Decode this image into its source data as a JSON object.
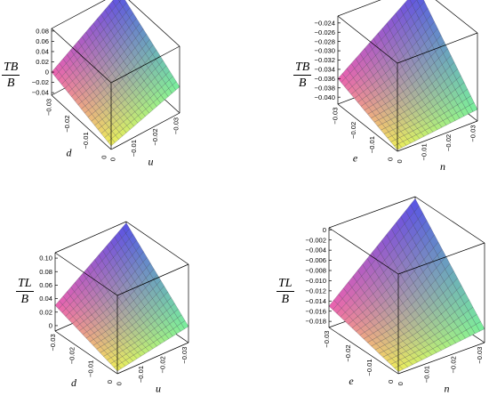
{
  "chart_data": [
    {
      "type": "surface3d",
      "zlabel": {
        "numerator": "TB",
        "denominator": "B"
      },
      "xlabel": "d",
      "ylabel": "u",
      "x_ticks": [
        "−0.03",
        "−0.02",
        "−0.01",
        "0"
      ],
      "y_ticks": [
        "0",
        "−0.01",
        "−0.02",
        "−0.03"
      ],
      "z_ticks": [
        "0.08",
        "0.06",
        "0.04",
        "0.02",
        "0",
        "−0.02",
        "−0.04"
      ],
      "zlim": [
        -0.045,
        0.085
      ],
      "corners": {
        "near": -0.038,
        "left": 0.0,
        "right": 0.006,
        "far": 0.085
      },
      "sag": 0.008
    },
    {
      "type": "surface3d",
      "zlabel": {
        "numerator": "TB",
        "denominator": "B"
      },
      "xlabel": "e",
      "ylabel": "n",
      "x_ticks": [
        "−0.03",
        "−0.02",
        "−0.01",
        "0"
      ],
      "y_ticks": [
        "0",
        "−0.01",
        "−0.02",
        "−0.03"
      ],
      "z_ticks": [
        "−0.024",
        "−0.026",
        "−0.028",
        "−0.030",
        "−0.032",
        "−0.034",
        "−0.036",
        "−0.038",
        "−0.040"
      ],
      "zlim": [
        -0.0415,
        -0.0225
      ],
      "corners": {
        "near": -0.0412,
        "left": -0.036,
        "right": -0.039,
        "far": -0.023
      },
      "sag": 0.0014
    },
    {
      "type": "surface3d",
      "zlabel": {
        "numerator": "TL",
        "denominator": "B"
      },
      "xlabel": "d",
      "ylabel": "u",
      "x_ticks": [
        "−0.03",
        "−0.02",
        "−0.01",
        "0"
      ],
      "y_ticks": [
        "0",
        "−0.01",
        "−0.02",
        "−0.03"
      ],
      "z_ticks": [
        "0.10",
        "0.08",
        "0.06",
        "0.04",
        "0.02",
        "0"
      ],
      "zlim": [
        -0.008,
        0.108
      ],
      "corners": {
        "near": -0.004,
        "left": 0.03,
        "right": 0.016,
        "far": 0.106
      },
      "sag": 0.008
    },
    {
      "type": "surface3d",
      "zlabel": {
        "numerator": "TL",
        "denominator": "B"
      },
      "xlabel": "e",
      "ylabel": "n",
      "x_ticks": [
        "−0.03",
        "−0.02",
        "−0.01",
        "0"
      ],
      "y_ticks": [
        "0",
        "−0.01",
        "−0.02",
        "−0.03"
      ],
      "z_ticks": [
        "0",
        "−0.002",
        "−0.004",
        "−0.006",
        "−0.008",
        "−0.010",
        "−0.012",
        "−0.014",
        "−0.016",
        "−0.018"
      ],
      "zlim": [
        -0.0192,
        0.0004
      ],
      "corners": {
        "near": -0.0188,
        "left": -0.015,
        "right": -0.0165,
        "far": 0.0
      },
      "sag": 0.0015
    }
  ]
}
